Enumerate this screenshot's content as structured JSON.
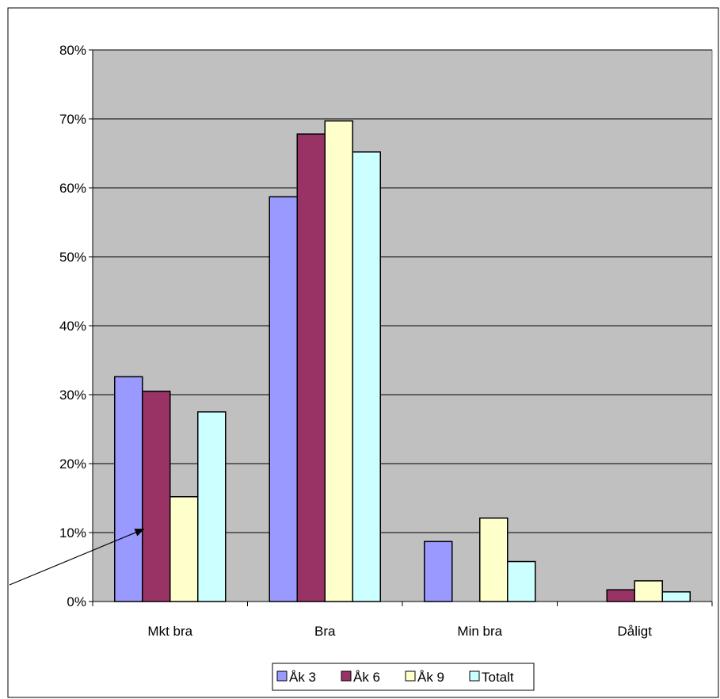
{
  "chart_data": {
    "type": "bar",
    "categories": [
      "Mkt bra",
      "Bra",
      "Min bra",
      "Dåligt"
    ],
    "series": [
      {
        "name": "Åk 3",
        "color": "#9999FF",
        "values": [
          32.6,
          58.7,
          8.7,
          0
        ]
      },
      {
        "name": "Åk 6",
        "color": "#993366",
        "values": [
          30.5,
          67.8,
          0,
          1.7
        ]
      },
      {
        "name": "Åk 9",
        "color": "#FFFFCC",
        "values": [
          15.2,
          69.7,
          12.1,
          3.0
        ]
      },
      {
        "name": "Totalt",
        "color": "#CCFFFF",
        "values": [
          27.5,
          65.2,
          5.8,
          1.4
        ]
      }
    ],
    "ylim": [
      0,
      80
    ],
    "yticks": [
      0,
      10,
      20,
      30,
      40,
      50,
      60,
      70,
      80
    ],
    "ytick_labels": [
      "0%",
      "10%",
      "20%",
      "30%",
      "40%",
      "50%",
      "60%",
      "70%",
      "80%"
    ],
    "grid": true,
    "plot_background": "#C0C0C0",
    "legend_position": "bottom",
    "annotation": "arrow pointing to the Åk 6 bar of Mkt bra"
  }
}
